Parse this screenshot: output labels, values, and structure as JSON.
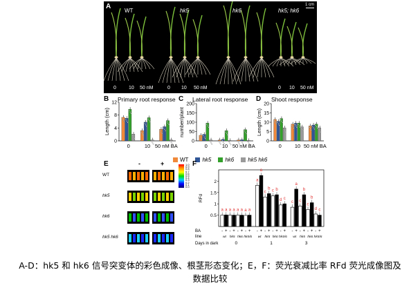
{
  "panel_a": {
    "label": "A",
    "scale": "1 cm",
    "genotypes": [
      {
        "label": "WT",
        "italic": false
      },
      {
        "label": "hk5",
        "italic": true
      },
      {
        "label": "hk6",
        "italic": true
      },
      {
        "label": "hk5; hk6",
        "italic": true
      }
    ],
    "doses_row1": [
      "0",
      "10",
      "50 nM"
    ],
    "doses_row2": [
      "0",
      "10",
      "50 nM"
    ],
    "doses_row3": [
      "0",
      "10",
      "50 nM"
    ]
  },
  "legend": [
    {
      "label": "WT",
      "color": "#f08a3a",
      "italic": false
    },
    {
      "label": "hk5",
      "color": "#2f5597",
      "italic": true
    },
    {
      "label": "hk6",
      "color": "#33a02c",
      "italic": true
    },
    {
      "label": "hk5 hk6",
      "color": "#9a9a9a",
      "italic": true
    }
  ],
  "chart_data": [
    {
      "panel": "B",
      "type": "bar",
      "title": "Primary root response",
      "ylabel": "Length (cm)",
      "ylim": [
        0,
        12
      ],
      "yticks": [
        "0",
        "4",
        "8",
        "12"
      ],
      "categories": [
        "0",
        "10",
        "50 nM BA"
      ],
      "series": [
        {
          "name": "WT",
          "values": [
            7.3,
            3.2,
            3.6
          ]
        },
        {
          "name": "hk5",
          "values": [
            7.0,
            5.8,
            4.4
          ]
        },
        {
          "name": "hk6",
          "values": [
            9.8,
            7.2,
            6.3
          ]
        },
        {
          "name": "hk5 hk6",
          "values": [
            2.1,
            0.3,
            0.3
          ]
        }
      ]
    },
    {
      "panel": "C",
      "type": "bar",
      "title": "Lateral root response",
      "ylabel": "number/plant",
      "ylim": [
        0,
        200
      ],
      "yticks": [
        "0",
        "50",
        "100",
        "150",
        "200"
      ],
      "categories": [
        "0",
        "10",
        "50 nM BA"
      ],
      "series": [
        {
          "name": "WT",
          "values": [
            30,
            5,
            5
          ]
        },
        {
          "name": "hk5",
          "values": [
            35,
            8,
            6
          ]
        },
        {
          "name": "hk6",
          "values": [
            95,
            55,
            60
          ]
        },
        {
          "name": "hk5 hk6",
          "values": [
            5,
            2,
            2
          ]
        }
      ]
    },
    {
      "panel": "D",
      "type": "bar",
      "title": "Shoot response",
      "ylabel": "Length (cm)",
      "ylim": [
        0,
        20
      ],
      "yticks": [
        "0",
        "5",
        "10",
        "15",
        "20"
      ],
      "categories": [
        "0",
        "10",
        "50 nM BA"
      ],
      "series": [
        {
          "name": "WT",
          "values": [
            11.5,
            9.0,
            8.0
          ]
        },
        {
          "name": "hk5",
          "values": [
            10.5,
            9.5,
            8.5
          ]
        },
        {
          "name": "hk6",
          "values": [
            12.0,
            9.5,
            9.0
          ]
        },
        {
          "name": "hk5 hk6",
          "values": [
            7.0,
            7.5,
            7.0
          ]
        }
      ]
    },
    {
      "panel": "F",
      "type": "bar",
      "ylabel": "RFd",
      "ylim": [
        0,
        2.5
      ],
      "yticks": [
        "0.5",
        "1",
        "1.5",
        "2"
      ],
      "days_label": "Days in dark",
      "ba_label": "BA",
      "line_label": "line",
      "days": [
        "0",
        "1",
        "3"
      ],
      "lines": [
        "wt",
        "hk5",
        "hk6",
        "hk5/6"
      ],
      "ba_signs": [
        "-",
        "+"
      ],
      "groups": [
        {
          "day": "0",
          "values": [
            0.5,
            0.51,
            0.5,
            0.5,
            0.5,
            0.5,
            0.49,
            0.5
          ],
          "letters": [
            "a",
            "a",
            "a",
            "a",
            "a",
            "a",
            "a",
            "a"
          ]
        },
        {
          "day": "1",
          "values": [
            1.82,
            2.25,
            1.3,
            1.45,
            1.35,
            1.4,
            0.95,
            1.0
          ],
          "letters": [
            "a",
            "a",
            "c",
            "b",
            "c",
            "b",
            "d",
            "c"
          ]
        },
        {
          "day": "3",
          "values": [
            0.85,
            1.65,
            0.9,
            1.4,
            0.75,
            1.05,
            0.55,
            0.5
          ],
          "letters": [
            "c",
            "a",
            "c",
            "b",
            "c",
            "b",
            "d",
            "c"
          ]
        }
      ]
    }
  ],
  "panel_e": {
    "label": "E",
    "columns": [
      "-",
      "+"
    ],
    "rows": [
      {
        "label": "WT",
        "italic": false
      },
      {
        "label": "hk5",
        "italic": true
      },
      {
        "label": "hk6",
        "italic": true
      },
      {
        "label": "hk5 hk6",
        "italic": true
      }
    ],
    "colorbar_ticks": [
      "1.0",
      "0.9",
      "0.8",
      "0.7",
      "0.6",
      "0.5",
      "0.4",
      "0.3",
      "0.2",
      "0.1",
      "0.0"
    ]
  },
  "caption": {
    "line1": "A-D：hk5 和 hk6 信号突变体的彩色成像、根茎形态变化；E，F：荧光衰减比率 RFd 荧光成像图及",
    "line2": "数据比较"
  }
}
